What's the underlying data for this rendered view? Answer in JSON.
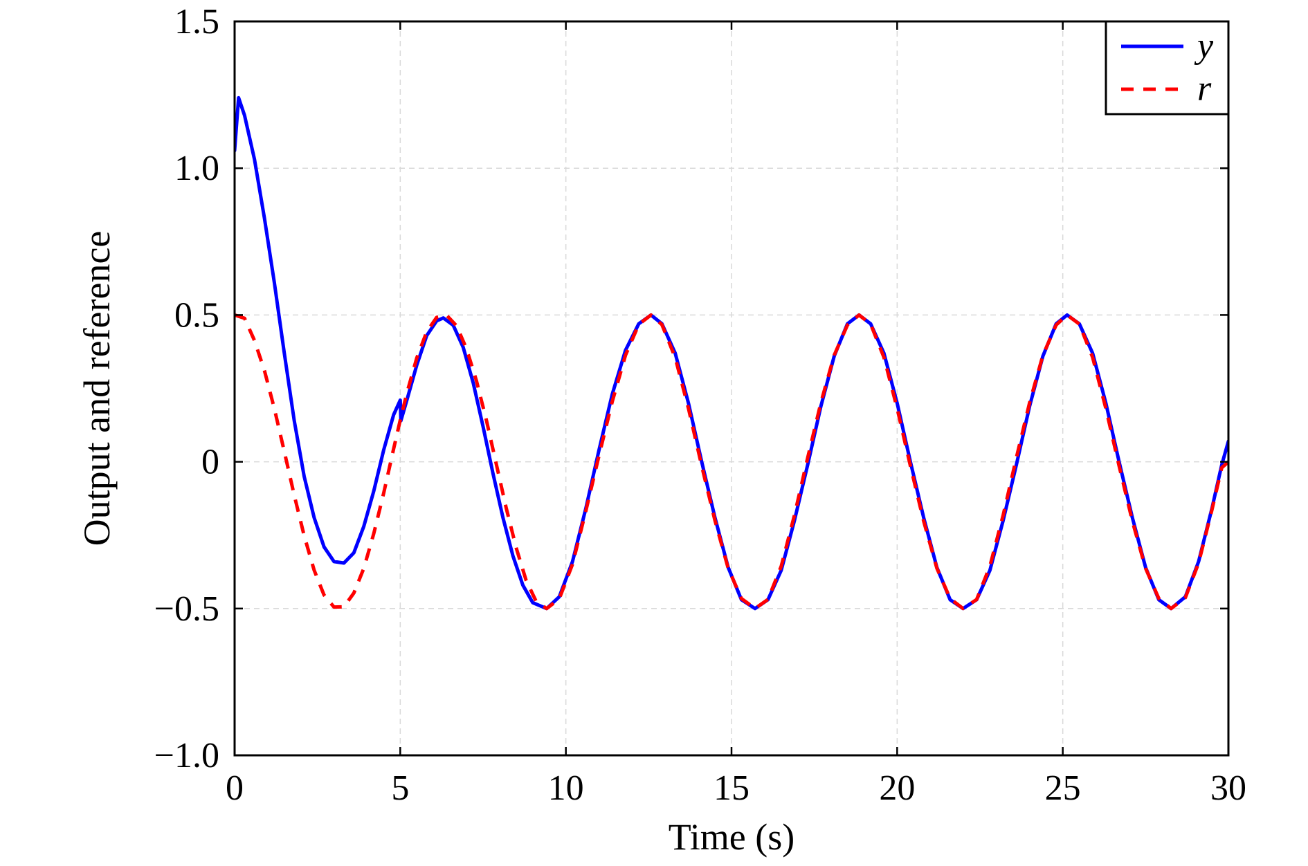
{
  "chart_data": {
    "type": "line",
    "xlabel": "Time (s)",
    "ylabel": "Output and reference",
    "xlim": [
      0,
      30
    ],
    "ylim": [
      -1.0,
      1.5
    ],
    "xticks": [
      0,
      5,
      10,
      15,
      20,
      25,
      30
    ],
    "xtick_labels": [
      "0",
      "5",
      "10",
      "15",
      "20",
      "25",
      "30"
    ],
    "yticks": [
      -1.0,
      -0.5,
      0,
      0.5,
      1.0,
      1.5
    ],
    "ytick_labels": [
      "−1.0",
      "−0.5",
      "0",
      "0.5",
      "1.0",
      "1.5"
    ],
    "grid": true,
    "legend_position": "top-right",
    "series": [
      {
        "name": "y",
        "color": "#0000ff",
        "style": "solid",
        "x": [
          0.0,
          0.12,
          0.3,
          0.6,
          0.9,
          1.2,
          1.5,
          1.8,
          2.1,
          2.4,
          2.7,
          3.0,
          3.3,
          3.6,
          3.9,
          4.2,
          4.5,
          4.8,
          5.0,
          5.02,
          5.2,
          5.5,
          5.8,
          6.1,
          6.3,
          6.6,
          6.9,
          7.2,
          7.5,
          7.8,
          8.1,
          8.4,
          8.7,
          9.0,
          9.42,
          9.8,
          10.2,
          10.6,
          11.0,
          11.4,
          11.8,
          12.2,
          12.57,
          12.9,
          13.3,
          13.7,
          14.1,
          14.5,
          14.9,
          15.3,
          15.71,
          16.1,
          16.5,
          16.9,
          17.3,
          17.7,
          18.1,
          18.5,
          18.85,
          19.2,
          19.6,
          20.0,
          20.4,
          20.8,
          21.2,
          21.6,
          21.99,
          22.4,
          22.8,
          23.2,
          23.6,
          24.0,
          24.4,
          24.8,
          25.13,
          25.5,
          25.9,
          26.3,
          26.7,
          27.1,
          27.5,
          27.9,
          28.27,
          28.7,
          29.1,
          29.5,
          29.8,
          30.0
        ],
        "y": [
          1.06,
          1.24,
          1.18,
          1.03,
          0.83,
          0.61,
          0.37,
          0.14,
          -0.05,
          -0.19,
          -0.29,
          -0.34,
          -0.345,
          -0.31,
          -0.22,
          -0.1,
          0.04,
          0.16,
          0.21,
          0.14,
          0.21,
          0.33,
          0.43,
          0.48,
          0.49,
          0.465,
          0.39,
          0.27,
          0.12,
          -0.04,
          -0.19,
          -0.32,
          -0.42,
          -0.48,
          -0.5,
          -0.46,
          -0.34,
          -0.16,
          0.04,
          0.23,
          0.38,
          0.47,
          0.5,
          0.47,
          0.37,
          0.2,
          0.0,
          -0.19,
          -0.36,
          -0.47,
          -0.5,
          -0.47,
          -0.37,
          -0.2,
          -0.01,
          0.19,
          0.36,
          0.47,
          0.5,
          0.47,
          0.37,
          0.2,
          0.0,
          -0.19,
          -0.36,
          -0.47,
          -0.5,
          -0.47,
          -0.37,
          -0.2,
          -0.01,
          0.19,
          0.36,
          0.47,
          0.5,
          0.47,
          0.37,
          0.2,
          0.0,
          -0.19,
          -0.36,
          -0.47,
          -0.5,
          -0.46,
          -0.34,
          -0.16,
          -0.01,
          0.07
        ]
      },
      {
        "name": "r",
        "color": "#ff0000",
        "style": "dashed",
        "x": [
          0.0,
          0.3,
          0.6,
          0.9,
          1.2,
          1.5,
          1.8,
          2.1,
          2.4,
          2.7,
          3.0,
          3.3,
          3.6,
          3.9,
          4.2,
          4.5,
          4.8,
          5.0,
          5.2,
          5.5,
          5.8,
          6.1,
          6.4,
          6.7,
          7.0,
          7.3,
          7.6,
          7.9,
          8.2,
          8.5,
          8.8,
          9.1,
          9.42,
          9.8,
          10.2,
          10.6,
          11.0,
          11.4,
          11.8,
          12.2,
          12.57,
          12.9,
          13.3,
          13.7,
          14.1,
          14.5,
          14.9,
          15.3,
          15.71,
          16.1,
          16.5,
          16.9,
          17.3,
          17.7,
          18.1,
          18.5,
          18.85,
          19.2,
          19.6,
          20.0,
          20.4,
          20.8,
          21.2,
          21.6,
          21.99,
          22.4,
          22.8,
          23.2,
          23.6,
          24.0,
          24.4,
          24.8,
          25.13,
          25.5,
          25.9,
          26.3,
          26.7,
          27.1,
          27.5,
          27.9,
          28.27,
          28.7,
          29.1,
          29.5,
          29.8,
          30.0
        ],
        "y": [
          0.5,
          0.489,
          0.413,
          0.311,
          0.181,
          0.035,
          -0.114,
          -0.252,
          -0.369,
          -0.454,
          -0.495,
          -0.494,
          -0.447,
          -0.363,
          -0.245,
          -0.107,
          0.044,
          0.142,
          0.234,
          0.354,
          0.443,
          0.492,
          0.499,
          0.463,
          0.385,
          0.276,
          0.142,
          -0.008,
          -0.158,
          -0.293,
          -0.404,
          -0.475,
          -0.5,
          -0.467,
          -0.349,
          -0.169,
          0.021,
          0.205,
          0.363,
          0.468,
          0.5,
          0.467,
          0.355,
          0.182,
          -0.014,
          -0.2,
          -0.363,
          -0.466,
          -0.5,
          -0.469,
          -0.356,
          -0.182,
          0.014,
          0.202,
          0.363,
          0.466,
          0.5,
          0.469,
          0.356,
          0.182,
          -0.014,
          -0.202,
          -0.363,
          -0.466,
          -0.5,
          -0.469,
          -0.356,
          -0.182,
          0.014,
          0.202,
          0.363,
          0.466,
          0.5,
          0.469,
          0.356,
          0.182,
          -0.014,
          -0.202,
          -0.363,
          -0.466,
          -0.5,
          -0.463,
          -0.345,
          -0.165,
          -0.02,
          0.0
        ]
      }
    ]
  }
}
